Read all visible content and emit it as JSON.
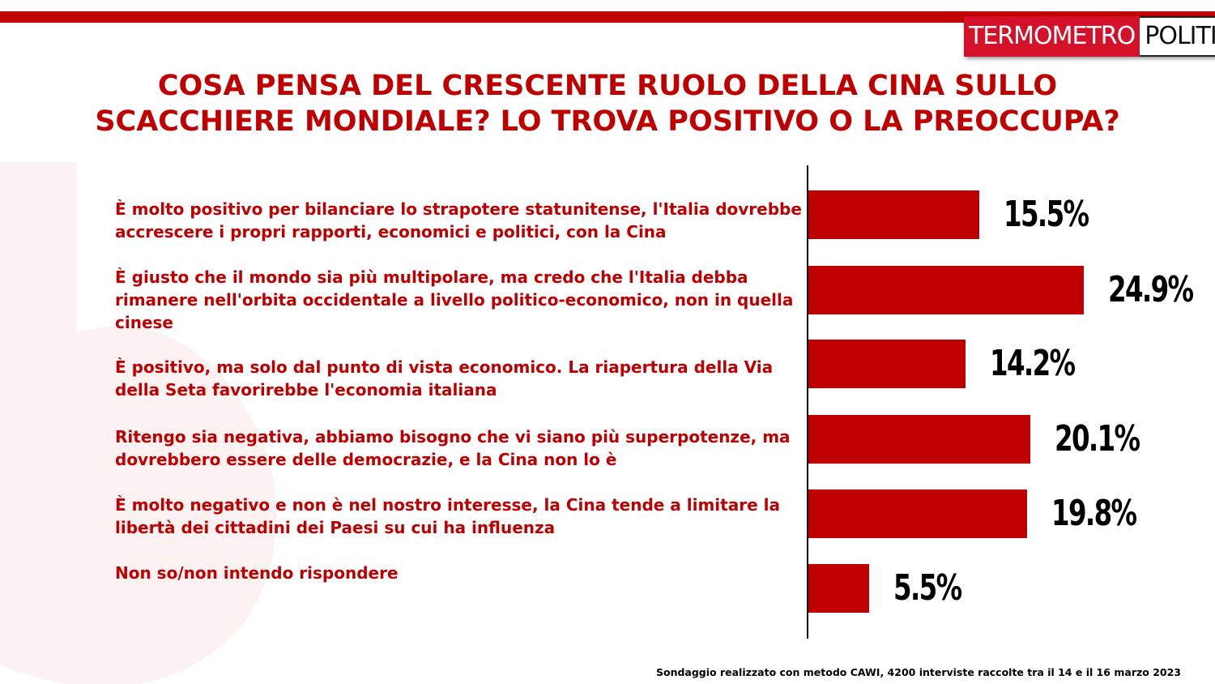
{
  "brand": {
    "logo_part1": "TERMOMETRO",
    "logo_part2": "POLITICO",
    "accent_color": "#c00000"
  },
  "title_line1": "COSA PENSA DEL CRESCENTE RUOLO DELLA CINA SULLO",
  "title_line2": "SCACCHIERE MONDIALE? LO TROVA POSITIVO O LA PREOCCUPA?",
  "footnote": "Sondaggio realizzato con metodo CAWI, 4200 interviste raccolte tra il 14 e il 16 marzo 2023",
  "chart_data": {
    "type": "bar",
    "orientation": "horizontal",
    "title": "COSA PENSA DEL CRESCENTE RUOLO DELLA CINA SULLO SCACCHIERE MONDIALE? LO TROVA POSITIVO O LA PREOCCUPA?",
    "categories": [
      "È molto positivo per bilanciare lo strapotere statunitense, l'Italia dovrebbe accrescere i propri rapporti, economici e politici, con la Cina",
      "È giusto che il mondo sia più multipolare, ma credo che l'Italia debba rimanere nell'orbita occidentale a livello politico-economico, non in quella cinese",
      "È positivo, ma solo dal punto di vista economico. La riapertura della Via della Seta favorirebbe l'economia italiana",
      "Ritengo sia negativa, abbiamo bisogno che vi siano più superpotenze, ma dovrebbero essere delle democrazie, e la Cina non lo è",
      "È molto negativo e non è nel nostro interesse, la Cina tende a limitare la libertà dei cittadini dei Paesi su cui ha influenza",
      "Non so/non intendo rispondere"
    ],
    "values": [
      15.5,
      24.9,
      14.2,
      20.1,
      19.8,
      5.5
    ],
    "value_labels": [
      "15.5%",
      "24.9%",
      "14.2%",
      "20.1%",
      "19.8%",
      "5.5%"
    ],
    "bar_color": "#c00000",
    "xlim": [
      0,
      25
    ],
    "grid": false
  }
}
